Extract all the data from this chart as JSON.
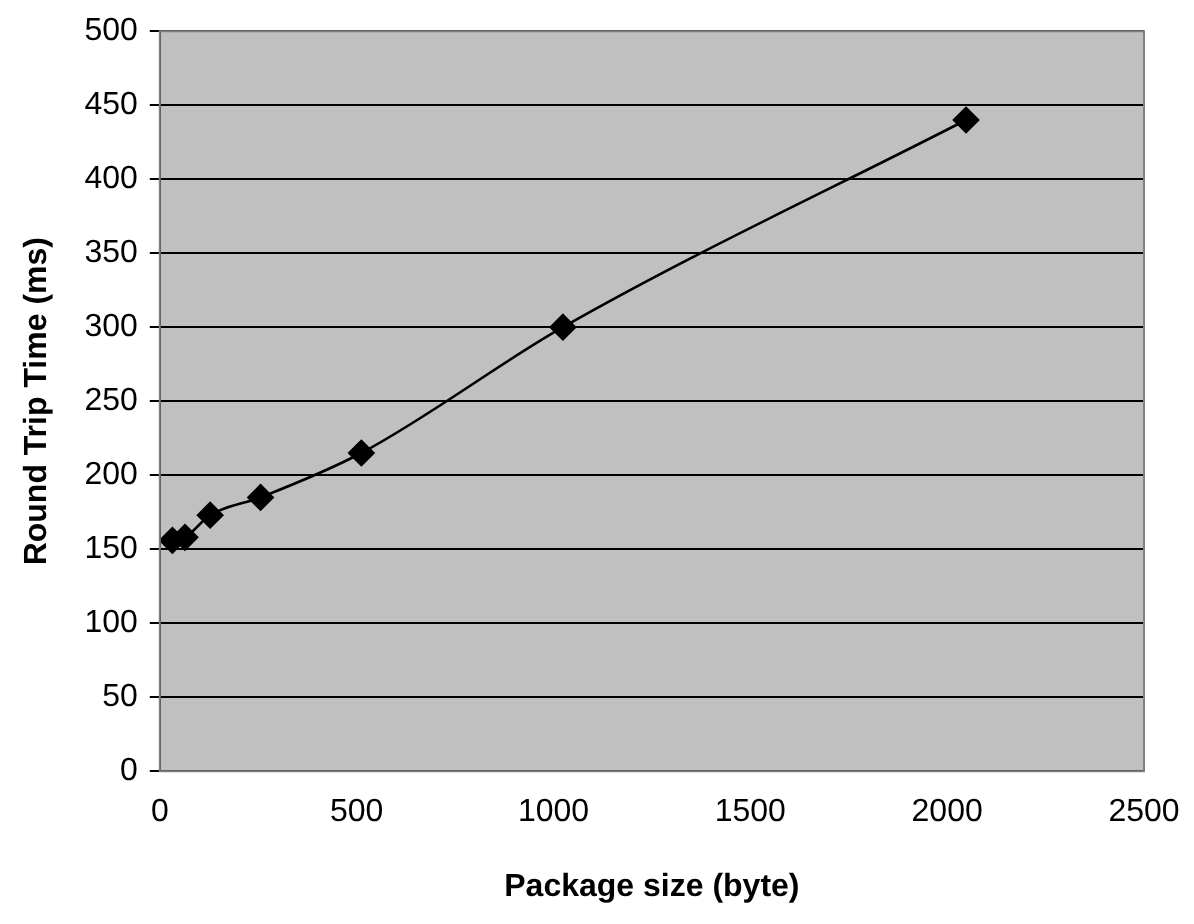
{
  "chart_data": {
    "type": "line",
    "xlabel": "Package size (byte)",
    "ylabel": "Round Trip Time (ms)",
    "x": [
      32,
      64,
      128,
      256,
      512,
      1024,
      2048
    ],
    "series": [
      {
        "color": "#000000",
        "values": [
          156,
          158,
          173,
          185,
          215,
          300,
          440
        ]
      }
    ],
    "xlim": [
      0,
      2500
    ],
    "xticks": [
      0,
      500,
      1000,
      1500,
      2000,
      2500
    ],
    "ylim": [
      0,
      500
    ],
    "yticks": [
      0,
      50,
      100,
      150,
      200,
      250,
      300,
      350,
      400,
      450,
      500
    ],
    "grid": "y",
    "legend": false,
    "marker": "diamond",
    "line_style": "solid"
  }
}
